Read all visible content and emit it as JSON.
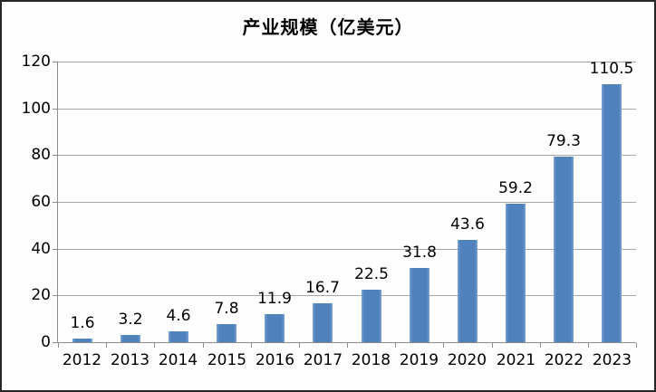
{
  "chart_data": {
    "type": "bar",
    "title": "产业规模（亿美元）",
    "categories": [
      "2012",
      "2013",
      "2014",
      "2015",
      "2016",
      "2017",
      "2018",
      "2019",
      "2020",
      "2021",
      "2022",
      "2023"
    ],
    "values": [
      1.6,
      3.2,
      4.6,
      7.8,
      11.9,
      16.7,
      22.5,
      31.8,
      43.6,
      59.2,
      79.3,
      110.5
    ],
    "value_labels": [
      "1.6",
      "3.2",
      "4.6",
      "7.8",
      "11.9",
      "16.7",
      "22.5",
      "31.8",
      "43.6",
      "59.2",
      "79.3",
      "110.5"
    ],
    "xlabel": "",
    "ylabel": "",
    "ylim": [
      0,
      120
    ],
    "y_ticks": [
      0,
      20,
      40,
      60,
      80,
      100,
      120
    ],
    "grid": "horizontal",
    "legend": "none",
    "data_labels": "above-bars",
    "colors": {
      "bar": "#4F81BD",
      "bar_edge_highlight": "#7BA2D2",
      "gridline": "#A6A6A6",
      "axis": "#8C8C8C",
      "text": "#000000",
      "frame_border": "#262626",
      "background": "#FEFEFE"
    }
  }
}
